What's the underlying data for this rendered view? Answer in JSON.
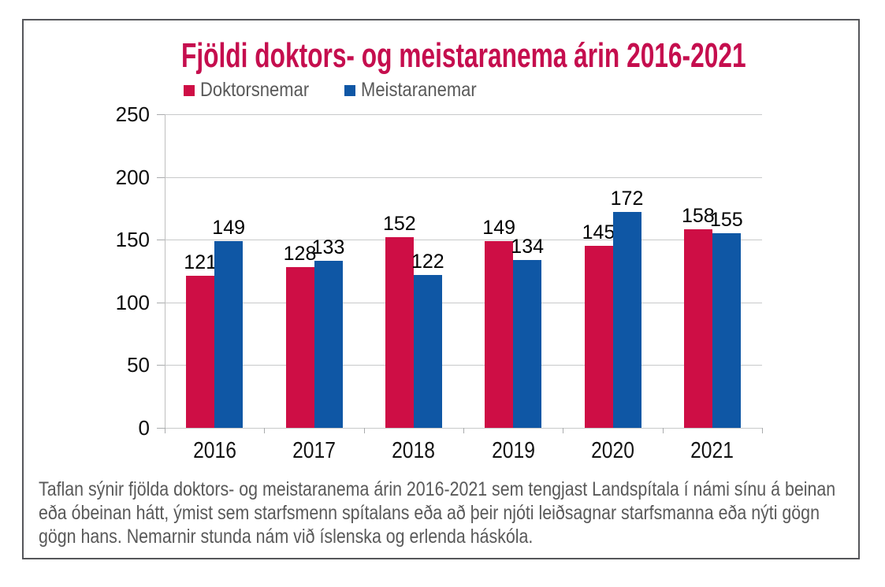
{
  "chart_data": {
    "type": "bar",
    "title": "Fjöldi doktors- og meistaranema árin 2016-2021",
    "categories": [
      "2016",
      "2017",
      "2018",
      "2019",
      "2020",
      "2021"
    ],
    "series": [
      {
        "name": "Doktorsnemar",
        "color": "#ce0e45",
        "values": [
          121,
          128,
          152,
          149,
          145,
          158
        ]
      },
      {
        "name": "Meistaranemar",
        "color": "#0f57a5",
        "values": [
          149,
          133,
          122,
          134,
          172,
          155
        ]
      }
    ],
    "ylim": [
      0,
      250
    ],
    "yticks": [
      0,
      50,
      100,
      150,
      200,
      250
    ],
    "grid": true,
    "legend_position": "top-left",
    "xlabel": "",
    "ylabel": ""
  },
  "caption": {
    "lines": [
      "Taflan sýnir fjölda doktors- og meistaranema árin 2016-2021 sem tengjast Landspítala í námi sínu á beinan",
      "eða óbeinan hátt, ýmist sem starfsmenn spítalans eða að þeir njóti leiðsagnar starfsmanna eða nýti gögn",
      "gögn hans. Nemarnir stunda nám við íslenska og erlenda háskóla."
    ]
  },
  "colors": {
    "title": "#c50e4e",
    "bar_red": "#ce0e45",
    "bar_blue": "#0f57a5",
    "text_gray": "#595959",
    "gridline": "#c8c9ca",
    "frame_border": "#55565a"
  }
}
